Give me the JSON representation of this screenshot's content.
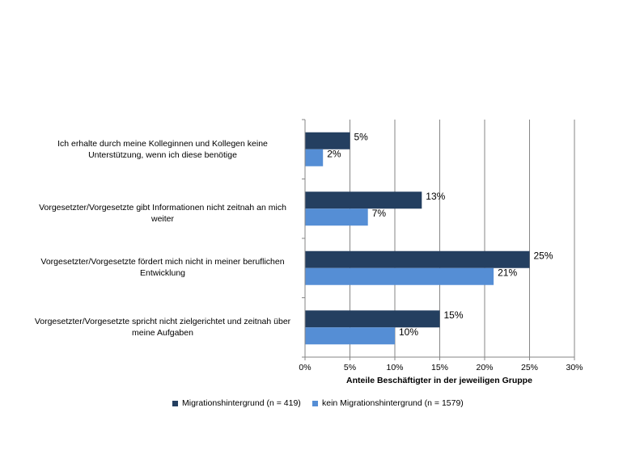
{
  "chart_data": {
    "type": "bar",
    "orientation": "horizontal",
    "categories": [
      "Ich erhalte durch meine Kolleginnen und Kollegen keine Unterstützung, wenn ich diese benötige",
      "Vorgesetzter/Vorgesetzte gibt Informationen nicht zeitnah an mich weiter",
      "Vorgesetzter/Vorgesetzte fördert mich nicht in meiner beruflichen Entwicklung",
      "Vorgesetzter/Vorgesetzte spricht nicht zielgerichtet und zeitnah über meine Aufgaben"
    ],
    "series": [
      {
        "name": "Migrationshintergrund (n = 419)",
        "color": "#243f60",
        "values": [
          5,
          13,
          25,
          15
        ]
      },
      {
        "name": "kein Migrationshintergrund (n = 1579)",
        "color": "#558ed5",
        "values": [
          2,
          7,
          21,
          10
        ]
      }
    ],
    "xlabel": "Anteile Beschäftigter in der jeweiligen Gruppe",
    "xlim": [
      0,
      30
    ],
    "xticks": [
      0,
      5,
      10,
      15,
      20,
      25,
      30
    ],
    "tick_suffix": "%",
    "grid": "vertical",
    "legend_position": "bottom"
  }
}
